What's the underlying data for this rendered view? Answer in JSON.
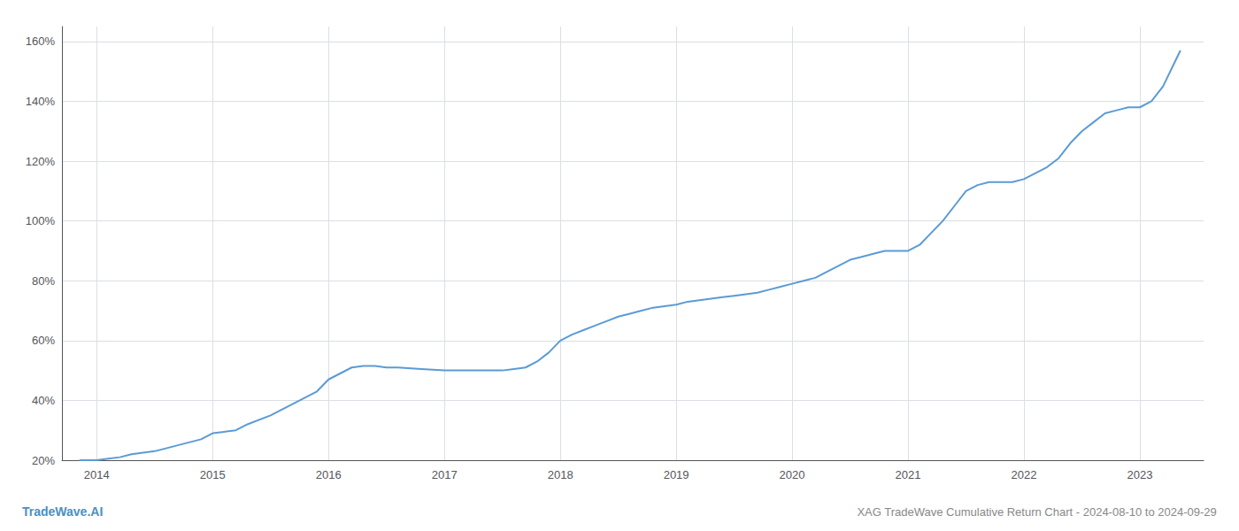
{
  "chart_data": {
    "type": "line",
    "title": "XAG TradeWave Cumulative Return Chart - 2024-08-10 to 2024-09-29",
    "annotations": [
      "TradeWave.AI"
    ],
    "color": "#5b9bd5",
    "grid": true,
    "x": [
      2013.85,
      2014.0,
      2014.1,
      2014.2,
      2014.3,
      2014.5,
      2014.7,
      2014.9,
      2015.0,
      2015.1,
      2015.2,
      2015.3,
      2015.5,
      2015.7,
      2015.9,
      2016.0,
      2016.1,
      2016.2,
      2016.3,
      2016.4,
      2016.5,
      2016.6,
      2016.8,
      2017.0,
      2017.1,
      2017.2,
      2017.3,
      2017.5,
      2017.6,
      2017.7,
      2017.8,
      2017.9,
      2018.0,
      2018.1,
      2018.2,
      2018.3,
      2018.4,
      2018.5,
      2018.6,
      2018.7,
      2018.8,
      2018.9,
      2019.0,
      2019.1,
      2019.2,
      2019.3,
      2019.4,
      2019.5,
      2019.6,
      2019.7,
      2019.8,
      2019.9,
      2020.0,
      2020.1,
      2020.2,
      2020.3,
      2020.4,
      2020.5,
      2020.6,
      2020.7,
      2020.8,
      2020.9,
      2021.0,
      2021.1,
      2021.2,
      2021.3,
      2021.4,
      2021.5,
      2021.6,
      2021.7,
      2021.8,
      2021.9,
      2022.0,
      2022.1,
      2022.2,
      2022.3,
      2022.4,
      2022.5,
      2022.6,
      2022.7,
      2022.8,
      2022.9,
      2023.0,
      2023.1,
      2023.2,
      2023.3,
      2023.35
    ],
    "values": [
      20,
      20,
      20.5,
      21,
      22,
      23,
      25,
      27,
      29,
      29.5,
      30,
      32,
      35,
      39,
      43,
      47,
      49,
      51,
      51.5,
      51.5,
      51,
      51,
      50.5,
      50,
      50,
      50,
      50,
      50,
      50.5,
      51,
      53,
      56,
      60,
      62,
      63.5,
      65,
      66.5,
      68,
      69,
      70,
      71,
      71.5,
      72,
      73,
      73.5,
      74,
      74.5,
      75,
      75.5,
      76,
      77,
      78,
      79,
      80,
      81,
      83,
      85,
      87,
      88,
      89,
      90,
      90,
      90,
      92,
      96,
      100,
      105,
      110,
      112,
      113,
      113,
      113,
      114,
      116,
      118,
      121,
      126,
      130,
      133,
      136,
      137,
      138,
      138,
      140,
      145,
      153,
      157
    ],
    "xlim": [
      2013.7,
      2023.55
    ],
    "ylim": [
      20,
      165
    ],
    "xticks": [
      2014,
      2015,
      2016,
      2017,
      2018,
      2019,
      2020,
      2021,
      2022,
      2023
    ],
    "yticks": [
      {
        "value": 20,
        "label": "20%"
      },
      {
        "value": 40,
        "label": "40%"
      },
      {
        "value": 60,
        "label": "60%"
      },
      {
        "value": 80,
        "label": "80%"
      },
      {
        "value": 100,
        "label": "100%"
      },
      {
        "value": 120,
        "label": "120%"
      },
      {
        "value": 140,
        "label": "140%"
      },
      {
        "value": 160,
        "label": "160%"
      }
    ]
  }
}
